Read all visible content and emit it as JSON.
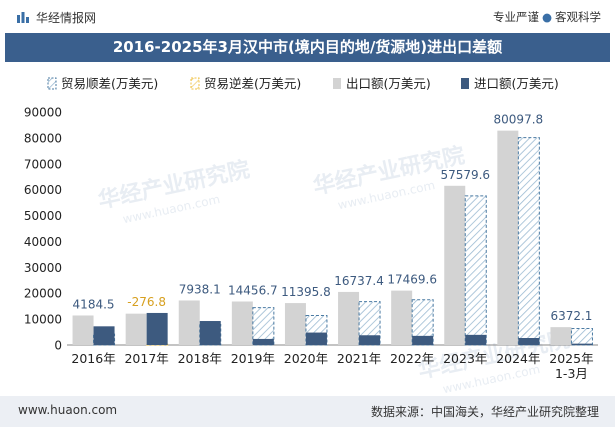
{
  "header": {
    "brand": "华经情报网",
    "tag_a": "专业严谨",
    "tag_b": "客观科学"
  },
  "title": "2016-2025年3月汉中市(境内目的地/货源地)进出口差额",
  "footer": {
    "url": "www.huaon.com",
    "source": "数据来源：中国海关，华经产业研究院整理"
  },
  "watermark": [
    "华经产业研究院",
    "www.huaon.com"
  ],
  "colors": {
    "export": "#d3d3d3",
    "import": "#3d5a7f",
    "surplus_stroke": "#4a7aa2",
    "deficit_stroke": "#f0c040",
    "title_bg": "#3a5f8d"
  },
  "chart_data": {
    "type": "bar",
    "categories": [
      "2016年",
      "2017年",
      "2018年",
      "2019年",
      "2020年",
      "2021年",
      "2022年",
      "2023年",
      "2024年",
      "2025年\n1-3月"
    ],
    "ylim": [
      0,
      90000
    ],
    "yticks": [
      0,
      10000,
      20000,
      30000,
      40000,
      50000,
      60000,
      70000,
      80000,
      90000
    ],
    "legend_position": "top",
    "series": [
      {
        "name": "贸易顺差(万美元)",
        "key": "surplus"
      },
      {
        "name": "贸易逆差(万美元)",
        "key": "deficit"
      },
      {
        "name": "出口额(万美元)",
        "key": "export",
        "values": [
          11400,
          12100,
          17200,
          16800,
          16200,
          20500,
          21000,
          61500,
          82800,
          6900
        ]
      },
      {
        "name": "进口额(万美元)",
        "key": "import",
        "values": [
          7215.5,
          12376.8,
          9261.9,
          2343.3,
          4804.2,
          3762.6,
          3530.4,
          3920.4,
          2702.2,
          527.9
        ]
      }
    ],
    "balance": [
      4184.5,
      -276.8,
      7938.1,
      14456.7,
      11395.8,
      16737.4,
      17469.6,
      57579.6,
      80097.8,
      6372.1
    ],
    "balance_labels": [
      "4184.5",
      "-276.8",
      "7938.1",
      "14456.7",
      "11395.8",
      "16737.4",
      "17469.6",
      "57579.6",
      "80097.8",
      "6372.1"
    ]
  }
}
